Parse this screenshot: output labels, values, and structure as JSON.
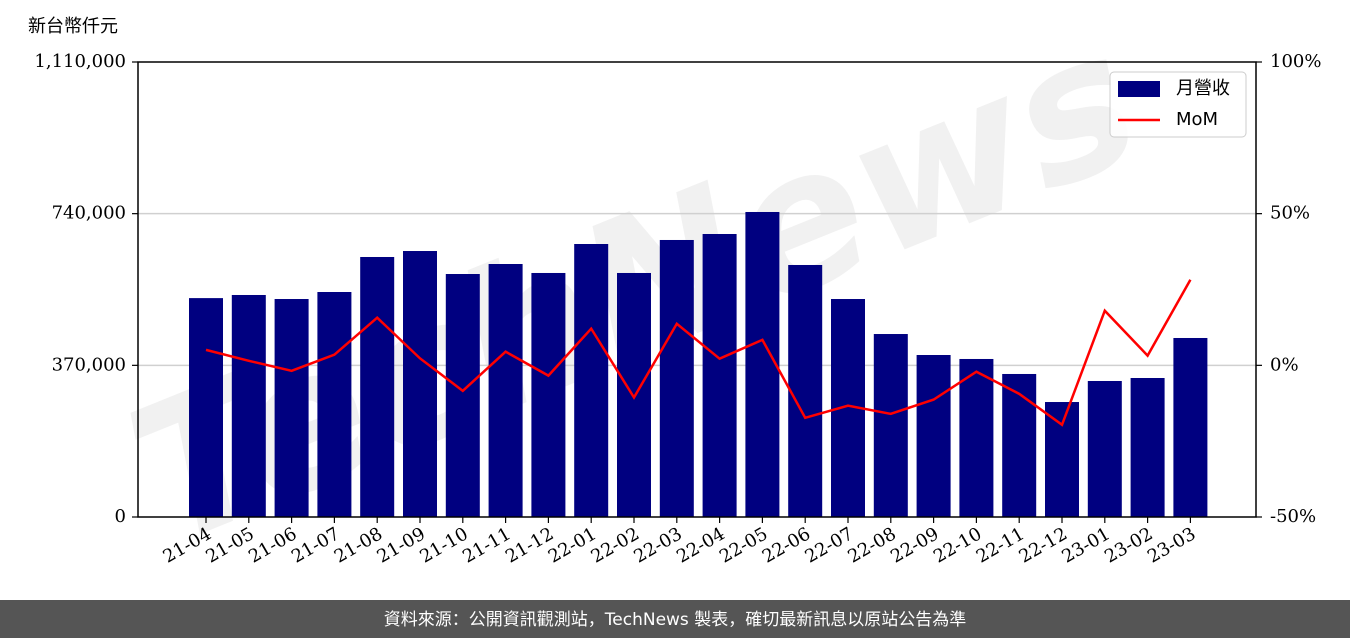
{
  "chart_data": {
    "type": "bar_line",
    "y_label": "新台幣仟元",
    "watermark": "TechNews",
    "footer": "資料來源：公開資訊觀測站，TechNews 製表，確切最新訊息以原站公告為準",
    "categories": [
      "21-04",
      "21-05",
      "21-06",
      "21-07",
      "21-08",
      "21-09",
      "21-10",
      "21-11",
      "21-12",
      "22-01",
      "22-02",
      "22-03",
      "22-04",
      "22-05",
      "22-06",
      "22-07",
      "22-08",
      "22-09",
      "22-10",
      "22-11",
      "22-12",
      "23-01",
      "23-02",
      "23-03"
    ],
    "series": [
      {
        "name": "月營收",
        "type": "bar",
        "color": "#000080",
        "values": [
          534000,
          541600,
          531800,
          548900,
          634300,
          648900,
          592800,
          617200,
          595300,
          666000,
          595300,
          675800,
          690400,
          744100,
          614800,
          531800,
          446400,
          395200,
          385500,
          348900,
          280500,
          331800,
          339100,
          436700
        ]
      },
      {
        "name": "MoM",
        "type": "line",
        "axis": "y2",
        "color": "#ff0000",
        "values": [
          5.1,
          1.5,
          -1.8,
          3.5,
          15.7,
          2.3,
          -8.4,
          4.5,
          -3.4,
          12.1,
          -10.6,
          13.7,
          2.2,
          8.4,
          -17.3,
          -13.3,
          -16.0,
          -11.3,
          -2.1,
          -9.4,
          -19.6,
          18.0,
          3.2,
          28.2
        ]
      }
    ],
    "ylim": [
      0,
      1110000
    ],
    "yticks": [
      0,
      {
        "value": 370000,
        "label": "370,000"
      },
      {
        "value": 740000,
        "label": "740,000"
      },
      {
        "value": 1110000,
        "label": "1,110,000"
      }
    ],
    "y2lim": [
      -50,
      100
    ],
    "y2ticks": [
      {
        "value": -50,
        "label": "-50%"
      },
      {
        "value": 0,
        "label": "0%"
      },
      {
        "value": 50,
        "label": "50%"
      },
      {
        "value": 100,
        "label": "100%"
      }
    ],
    "grid": true,
    "legend": "upper right"
  }
}
